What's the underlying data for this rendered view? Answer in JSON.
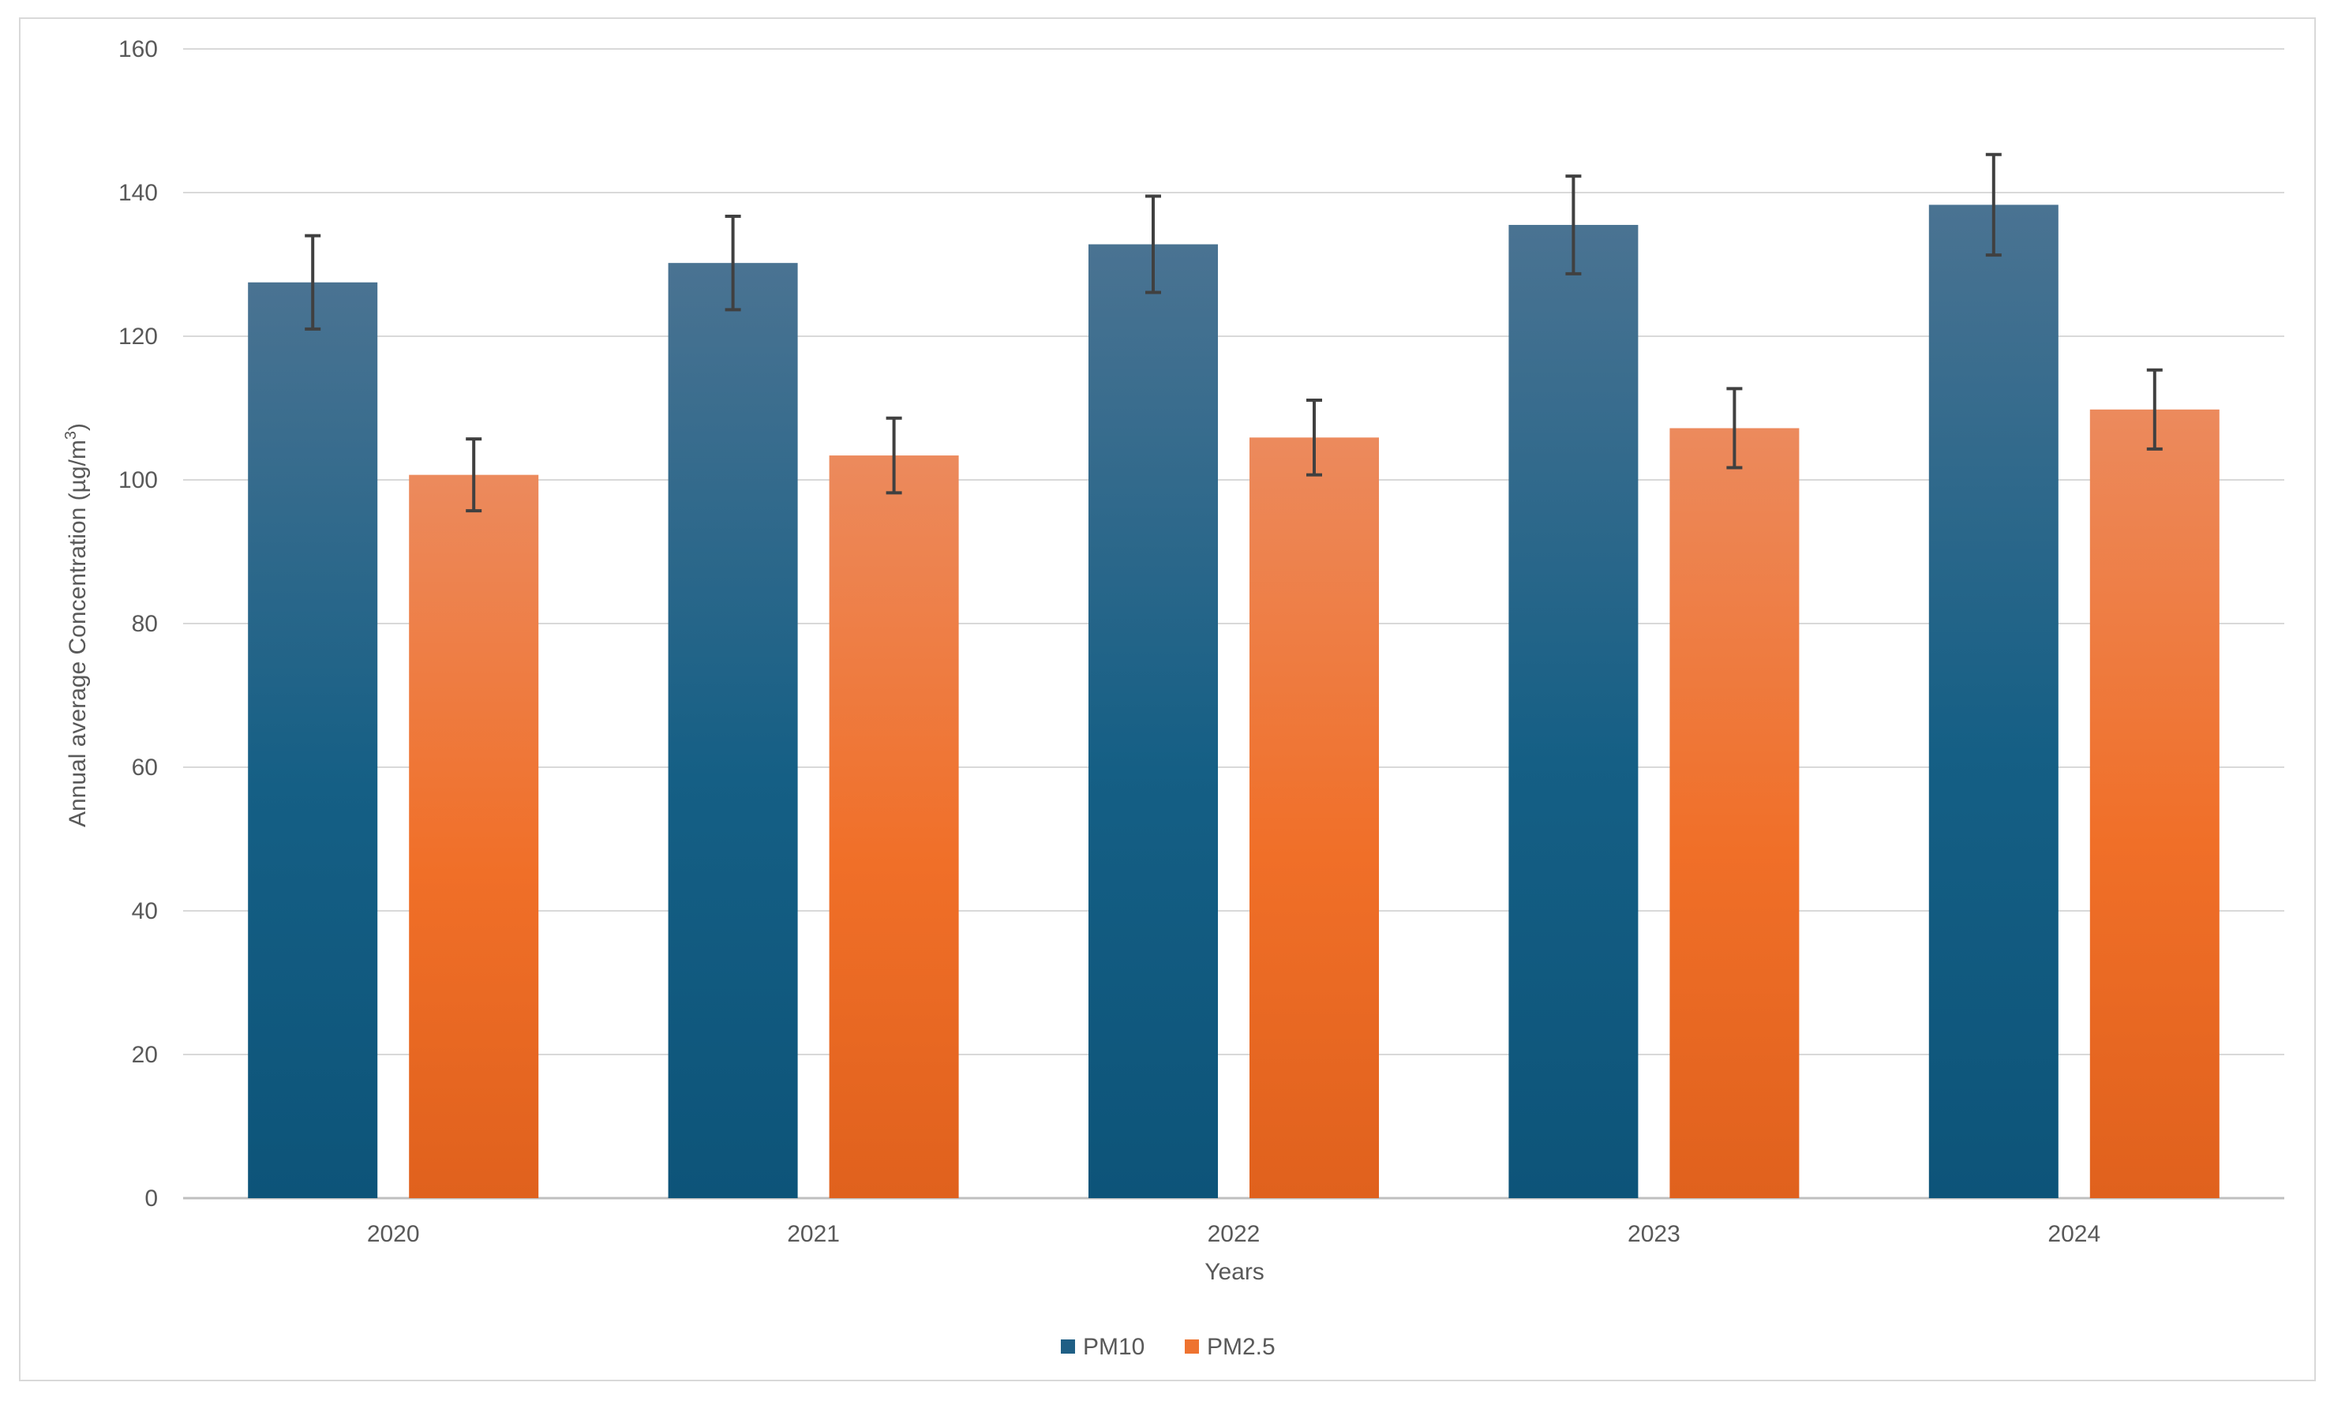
{
  "chart_data": {
    "type": "bar",
    "title": "",
    "categories": [
      "2020",
      "2021",
      "2022",
      "2023",
      "2024"
    ],
    "series": [
      {
        "name": "PM10",
        "values": [
          127.5,
          130.2,
          132.8,
          135.5,
          138.3
        ],
        "error": [
          6.5,
          6.5,
          6.7,
          6.8,
          7.0
        ],
        "color": "#1f5f85"
      },
      {
        "name": "PM2.5",
        "values": [
          100.7,
          103.4,
          105.9,
          107.2,
          109.8
        ],
        "error": [
          5.0,
          5.2,
          5.2,
          5.5,
          5.5
        ],
        "color": "#ee7330"
      }
    ],
    "xlabel": "Years",
    "ylabel": "Annual average Concentration (µg/m",
    "ylabel_superscript": "3",
    "ylabel_close": ")",
    "ylim": [
      0,
      160
    ],
    "yticks": [
      0,
      20,
      40,
      60,
      80,
      100,
      120,
      140,
      160
    ],
    "grid": true,
    "legend_position": "bottom-center"
  }
}
